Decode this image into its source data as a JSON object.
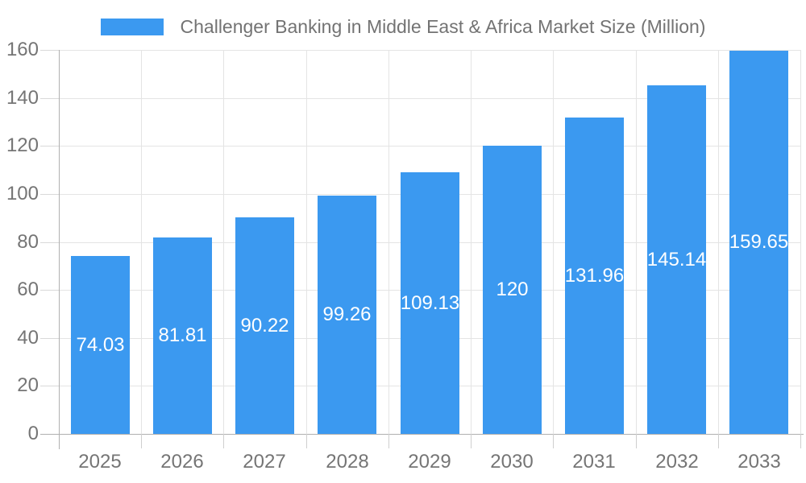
{
  "chart_data": {
    "type": "bar",
    "title": "Challenger Banking in Middle East & Africa Market Size (Million)",
    "legend": [
      {
        "label": "Challenger Banking in Middle East & Africa Market Size (Million)",
        "color": "#3b99f0"
      }
    ],
    "legend_position": "top-center",
    "categories": [
      "2025",
      "2026",
      "2027",
      "2028",
      "2029",
      "2030",
      "2031",
      "2032",
      "2033"
    ],
    "values": [
      74.03,
      81.81,
      90.22,
      99.26,
      109.13,
      120,
      131.96,
      145.14,
      159.65
    ],
    "value_labels": [
      "74.03",
      "81.81",
      "90.22",
      "99.26",
      "109.13",
      "120",
      "131.96",
      "145.14",
      "159.65"
    ],
    "xlabel": "",
    "ylabel": "",
    "ylim": [
      0,
      160
    ],
    "ytick_step": 20,
    "yticks": [
      0,
      20,
      40,
      60,
      80,
      100,
      120,
      140,
      160
    ],
    "grid": true,
    "value_label_position": "center-of-bar",
    "colors": {
      "bar": "#3b99f0",
      "value_label": "#ffffff",
      "axis_line": "#b0b0b0",
      "grid_line": "#e4e4e4",
      "y_tick_mark": "#d9d9d9",
      "x_tick_mark": "#cfcfcf",
      "tick_label": "#757575",
      "title_text": "#737373",
      "background": "#ffffff"
    }
  }
}
